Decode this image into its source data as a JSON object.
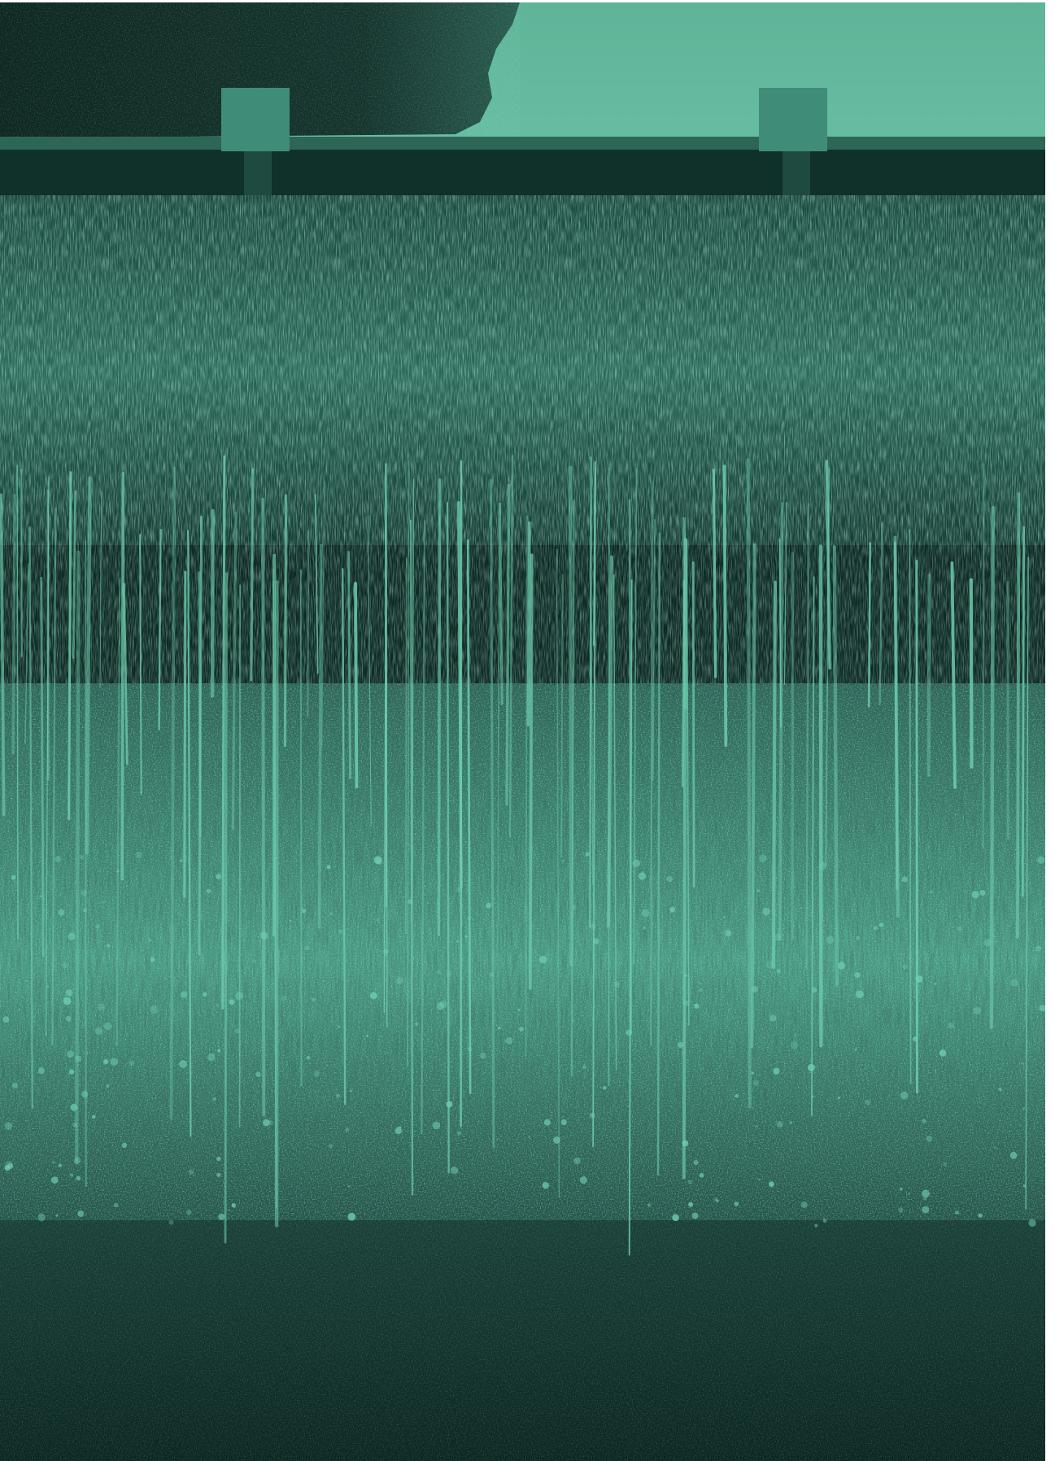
{
  "image": {
    "subject": "",
    "palette": {
      "teal_light": "#6fcfb0",
      "teal_mid": "#3f9c84",
      "teal_dark": "#1a4a40",
      "shadow": "#0d2420",
      "sky": "#62b79c"
    }
  }
}
